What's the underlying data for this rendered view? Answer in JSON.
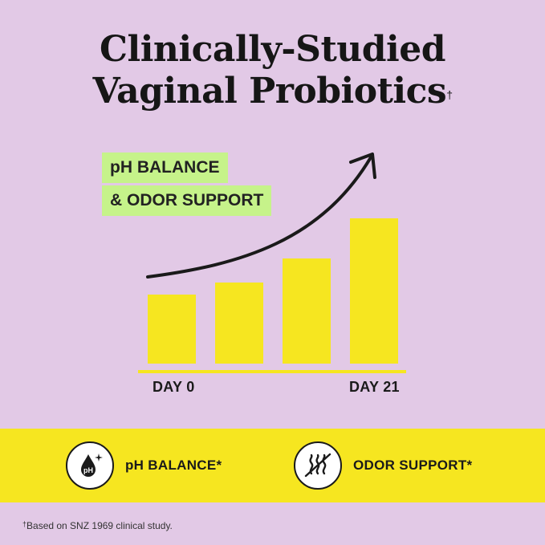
{
  "title": {
    "line1": "Clinically-Studied",
    "line2": "Vaginal Probiotics",
    "dagger": "†"
  },
  "badge": {
    "line1": "pH BALANCE",
    "line2": "& ODOR SUPPORT"
  },
  "chart_data": {
    "type": "bar",
    "categories": [
      "",
      "",
      "",
      ""
    ],
    "values": [
      86,
      101,
      131,
      181
    ],
    "ylim": [
      0,
      190
    ],
    "x_start_label": "DAY 0",
    "x_end_label": "DAY 21",
    "bar_color": "#f6e620",
    "baseline_color": "#f6e620",
    "trend_arrow": true,
    "grid": false,
    "legend": "none"
  },
  "features": [
    {
      "icon": "ph-drop-icon",
      "label": "pH BALANCE*"
    },
    {
      "icon": "no-odor-icon",
      "label": "ODOR SUPPORT*"
    }
  ],
  "footnote": {
    "dagger": "†",
    "text": "Based on SNZ 1969 clinical study."
  },
  "colors": {
    "background": "#e2c9e6",
    "yellow": "#f6e620",
    "green": "#c6f38a",
    "ink": "#1a1a1a"
  }
}
